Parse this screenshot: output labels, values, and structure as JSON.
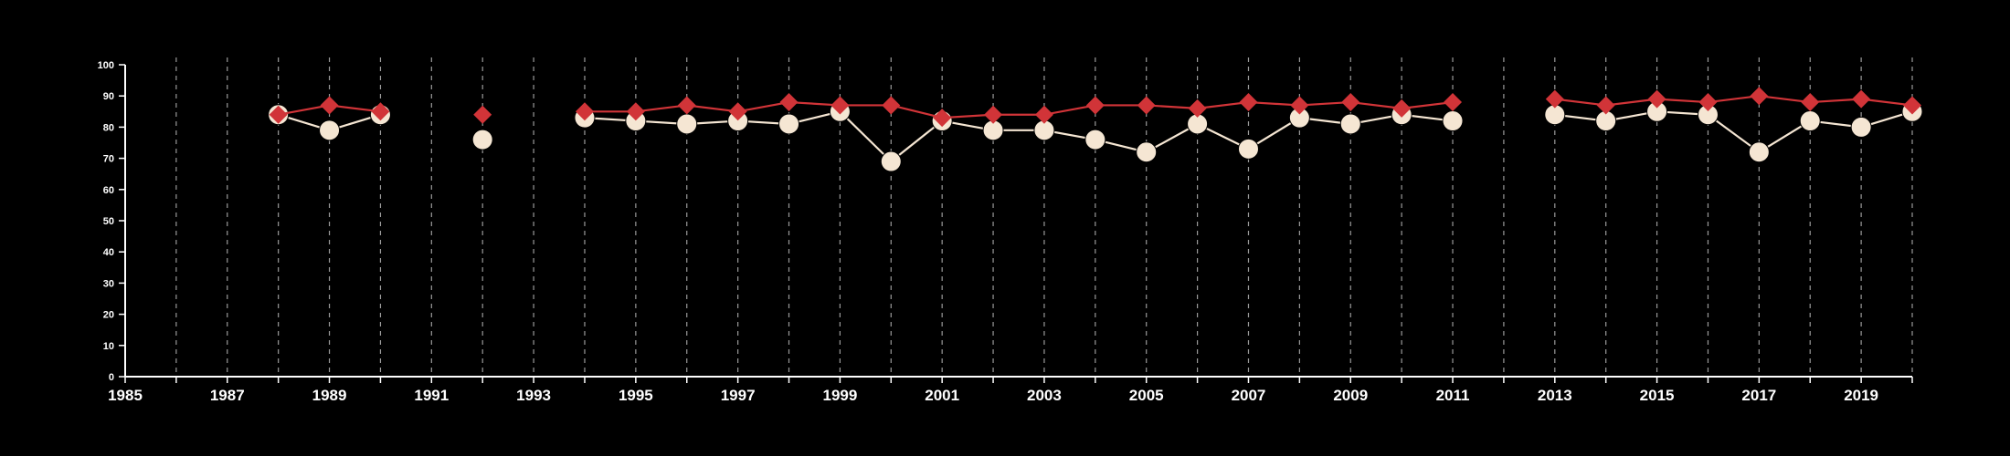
{
  "chart_data": {
    "type": "line",
    "title": "",
    "xlabel": "",
    "ylabel": "",
    "xlim": [
      1985,
      2020
    ],
    "ylim": [
      0,
      100
    ],
    "x_ticks": [
      1985,
      1986,
      1987,
      1988,
      1989,
      1990,
      1991,
      1992,
      1993,
      1994,
      1995,
      1996,
      1997,
      1998,
      1999,
      2000,
      2001,
      2002,
      2003,
      2004,
      2005,
      2006,
      2007,
      2008,
      2009,
      2010,
      2011,
      2012,
      2013,
      2014,
      2015,
      2016,
      2017,
      2018,
      2019,
      2020
    ],
    "x_tick_labels": [
      "1985",
      "1987",
      "1989",
      "1991",
      "1993",
      "1995",
      "1997",
      "1999",
      "2001",
      "2003",
      "2005",
      "2007",
      "2009",
      "2011",
      "2013",
      "2015",
      "2017",
      "2019"
    ],
    "y_ticks": [
      0,
      10,
      20,
      30,
      40,
      50,
      60,
      70,
      80,
      90,
      100
    ],
    "grid": "vertical dashed",
    "series": [
      {
        "marker": "circle",
        "color": "#f5e6d3",
        "x": [
          1988,
          1989,
          1990,
          1992,
          1994,
          1995,
          1996,
          1997,
          1998,
          1999,
          2000,
          2001,
          2002,
          2003,
          2004,
          2005,
          2006,
          2007,
          2008,
          2009,
          2010,
          2011,
          2013,
          2014,
          2015,
          2016,
          2017,
          2018,
          2019,
          2020
        ],
        "values": [
          84,
          79,
          84,
          76,
          83,
          82,
          81,
          82,
          81,
          85,
          69,
          82,
          79,
          79,
          76,
          72,
          81,
          73,
          83,
          81,
          84,
          82,
          84,
          82,
          85,
          84,
          72,
          82,
          80,
          85
        ]
      },
      {
        "marker": "diamond",
        "color": "#d13438",
        "x": [
          1988,
          1989,
          1990,
          1992,
          1994,
          1995,
          1996,
          1997,
          1998,
          1999,
          2000,
          2001,
          2002,
          2003,
          2004,
          2005,
          2006,
          2007,
          2008,
          2009,
          2010,
          2011,
          2013,
          2014,
          2015,
          2016,
          2017,
          2018,
          2019,
          2020
        ],
        "values": [
          84,
          87,
          85,
          84,
          85,
          85,
          87,
          85,
          88,
          87,
          87,
          83,
          84,
          84,
          87,
          87,
          86,
          88,
          87,
          88,
          86,
          88,
          89,
          87,
          89,
          88,
          90,
          88,
          89,
          87
        ]
      }
    ]
  }
}
